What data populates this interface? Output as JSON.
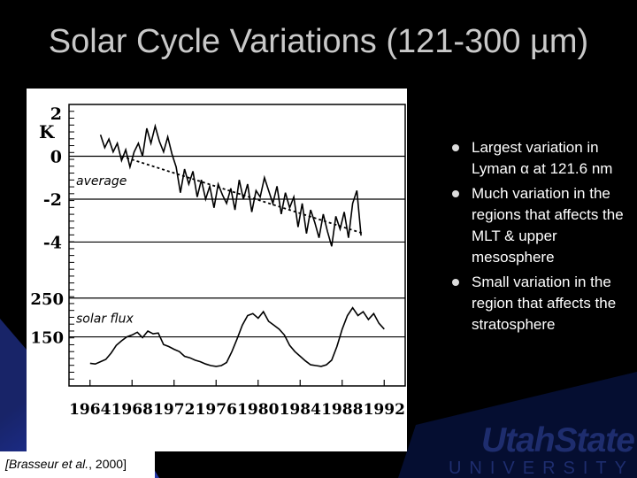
{
  "slide": {
    "title": "Solar Cycle Variations (121-300 µm)",
    "bullets": [
      "Largest variation in Lyman α at 121.6 nm",
      "Much variation in the regions that affects the MLT & upper mesosphere",
      "Small variation in the region that affects the stratosphere"
    ],
    "citation_prefix": "[Brasseur et al.",
    "citation_suffix": ", 2000]",
    "logo_top": "UtahState",
    "logo_bottom": "UNIVERSITY",
    "colors": {
      "background": "#000000",
      "title": "#c9c9c9",
      "accent_blue": "#1e2d6e",
      "bullet_text": "#ffffff"
    }
  },
  "chart_data": {
    "type": "line",
    "xlim": [
      1962,
      1994
    ],
    "x_ticks": [
      "1964",
      "1968",
      "1972",
      "1976",
      "1980",
      "1984",
      "1988",
      "1992"
    ],
    "x_tick_values": [
      1964,
      1968,
      1972,
      1976,
      1980,
      1984,
      1988,
      1992
    ],
    "upper_panel": {
      "ylabel": "K",
      "y_ticks": [
        "2",
        "0",
        "-2",
        "-4"
      ],
      "y_tick_values": [
        2,
        0,
        -2,
        -4
      ],
      "ylim": [
        -4.6,
        2
      ],
      "series_label": "average",
      "temperature_series": {
        "x": [
          1965.0,
          1965.4,
          1965.8,
          1966.2,
          1966.6,
          1967.0,
          1967.4,
          1967.8,
          1968.2,
          1968.6,
          1969.0,
          1969.4,
          1969.8,
          1970.2,
          1970.6,
          1971.0,
          1971.4,
          1971.8,
          1972.2,
          1972.6,
          1973.0,
          1973.4,
          1973.8,
          1974.2,
          1974.6,
          1975.0,
          1975.4,
          1975.8,
          1976.2,
          1976.6,
          1977.0,
          1977.4,
          1977.8,
          1978.2,
          1978.6,
          1979.0,
          1979.4,
          1979.8,
          1980.2,
          1980.6,
          1981.0,
          1981.4,
          1981.8,
          1982.2,
          1982.6,
          1983.0,
          1983.4,
          1983.8,
          1984.2,
          1984.6,
          1985.0,
          1985.4,
          1985.8,
          1986.2,
          1986.6,
          1987.0,
          1987.4,
          1987.8,
          1988.2,
          1988.6,
          1989.0,
          1989.4,
          1989.8
        ],
        "y": [
          1.0,
          0.4,
          0.8,
          0.2,
          0.6,
          -0.2,
          0.3,
          -0.5,
          0.2,
          0.6,
          0.0,
          1.3,
          0.6,
          1.4,
          0.7,
          0.2,
          0.9,
          0.1,
          -0.5,
          -1.7,
          -0.6,
          -1.3,
          -0.7,
          -1.9,
          -1.1,
          -2.0,
          -1.4,
          -2.4,
          -1.3,
          -1.8,
          -2.2,
          -1.5,
          -2.5,
          -1.1,
          -2.0,
          -1.3,
          -2.6,
          -1.6,
          -1.9,
          -1.0,
          -1.6,
          -2.2,
          -1.4,
          -2.7,
          -1.7,
          -2.4,
          -1.9,
          -3.3,
          -2.2,
          -3.6,
          -2.5,
          -3.1,
          -3.8,
          -2.7,
          -3.5,
          -4.2,
          -2.8,
          -3.4,
          -2.6,
          -3.8,
          -2.2,
          -1.6,
          -3.7
        ]
      },
      "average_trend": {
        "x": [
          1967,
          1990
        ],
        "y": [
          0.0,
          -3.6
        ]
      }
    },
    "lower_panel": {
      "series_label": "solar flux",
      "y_ticks": [
        "250",
        "150"
      ],
      "y_tick_values": [
        250,
        150
      ],
      "ylim": [
        60,
        270
      ],
      "solar_flux_series": {
        "x": [
          1964.0,
          1964.5,
          1965.0,
          1965.5,
          1966.0,
          1966.5,
          1967.0,
          1967.5,
          1968.0,
          1968.5,
          1969.0,
          1969.5,
          1970.0,
          1970.5,
          1971.0,
          1971.5,
          1972.0,
          1972.5,
          1973.0,
          1973.5,
          1974.0,
          1974.5,
          1975.0,
          1975.5,
          1976.0,
          1976.5,
          1977.0,
          1977.5,
          1978.0,
          1978.5,
          1979.0,
          1979.5,
          1980.0,
          1980.5,
          1981.0,
          1981.5,
          1982.0,
          1982.5,
          1983.0,
          1983.5,
          1984.0,
          1984.5,
          1985.0,
          1985.5,
          1986.0,
          1986.5,
          1987.0,
          1987.5,
          1988.0,
          1988.5,
          1989.0,
          1989.5,
          1990.0,
          1990.5,
          1991.0,
          1991.5,
          1992.0
        ],
        "y": [
          82,
          80,
          86,
          92,
          108,
          128,
          140,
          150,
          155,
          162,
          148,
          165,
          158,
          160,
          130,
          125,
          118,
          112,
          100,
          96,
          90,
          86,
          80,
          76,
          74,
          76,
          84,
          112,
          145,
          180,
          205,
          210,
          198,
          215,
          190,
          180,
          170,
          155,
          128,
          112,
          100,
          88,
          78,
          76,
          74,
          78,
          90,
          125,
          170,
          205,
          225,
          205,
          215,
          195,
          210,
          185,
          170
        ]
      }
    }
  }
}
